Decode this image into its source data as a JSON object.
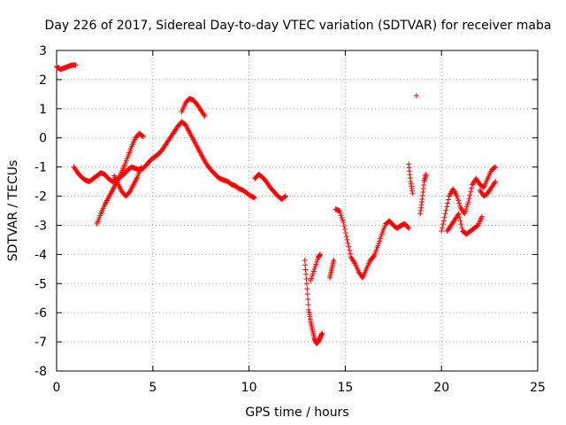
{
  "chart_data": {
    "type": "scatter",
    "title": "Day 226 of 2017, Sidereal Day-to-day VTEC variation (SDTVAR) for receiver maba",
    "xlabel": "GPS time / hours",
    "ylabel": "SDTVAR / TECUs",
    "xlim": [
      0,
      25
    ],
    "ylim": [
      -8,
      3
    ],
    "xticks": [
      0,
      5,
      10,
      15,
      20,
      25
    ],
    "yticks": [
      -8,
      -7,
      -6,
      -5,
      -4,
      -3,
      -2,
      -1,
      0,
      1,
      2,
      3
    ],
    "xtick_labels": [
      "0",
      "5",
      "10",
      "15",
      "20",
      "25"
    ],
    "ytick_labels": [
      "-8",
      "-7",
      "-6",
      "-5",
      "-4",
      "-3",
      "-2",
      "-1",
      "0",
      "1",
      "2",
      "3"
    ],
    "grid": true,
    "marker": "plus",
    "color": "#ff0000",
    "segments": [
      {
        "name": "s1",
        "x": [
          0.0,
          0.2,
          0.4,
          0.6,
          0.8,
          1.0
        ],
        "y": [
          2.45,
          2.35,
          2.4,
          2.45,
          2.5,
          2.5
        ]
      },
      {
        "name": "s2",
        "x": [
          0.9,
          1.1,
          1.3,
          1.5,
          1.7,
          1.9,
          2.1,
          2.3,
          2.5,
          2.7,
          2.9,
          3.1,
          3.3,
          3.5,
          3.7,
          3.9,
          4.1,
          4.3,
          4.5,
          4.7,
          4.9,
          5.1,
          5.3,
          5.5,
          5.7,
          5.9,
          6.1,
          6.3,
          6.5,
          6.7,
          6.9,
          7.1,
          7.3,
          7.5,
          7.7,
          7.9,
          8.1,
          8.3,
          8.5,
          8.7,
          8.9,
          9.1,
          9.3,
          9.5,
          9.7,
          9.9,
          10.1,
          10.3
        ],
        "y": [
          -1.0,
          -1.2,
          -1.35,
          -1.45,
          -1.5,
          -1.4,
          -1.3,
          -1.2,
          -1.25,
          -1.4,
          -1.5,
          -1.45,
          -1.35,
          -1.25,
          -1.1,
          -1.0,
          -1.05,
          -1.1,
          -1.05,
          -0.9,
          -0.75,
          -0.65,
          -0.55,
          -0.4,
          -0.2,
          0.0,
          0.2,
          0.4,
          0.55,
          0.45,
          0.2,
          -0.05,
          -0.3,
          -0.55,
          -0.8,
          -1.0,
          -1.15,
          -1.3,
          -1.4,
          -1.45,
          -1.5,
          -1.6,
          -1.65,
          -1.75,
          -1.8,
          -1.9,
          -2.0,
          -2.05
        ]
      },
      {
        "name": "s3",
        "x": [
          2.1,
          2.3,
          2.5,
          2.7,
          2.9,
          3.1,
          3.3,
          3.5,
          3.7,
          3.9,
          4.1,
          4.3,
          4.5
        ],
        "y": [
          -2.95,
          -2.6,
          -2.3,
          -2.05,
          -1.8,
          -1.55,
          -1.3,
          -1.0,
          -0.65,
          -0.3,
          0.0,
          0.15,
          0.05
        ]
      },
      {
        "name": "s4",
        "x": [
          3.0,
          3.2,
          3.4,
          3.6,
          3.8,
          4.0,
          4.2,
          4.4
        ],
        "y": [
          -1.3,
          -1.6,
          -1.85,
          -2.0,
          -1.85,
          -1.6,
          -1.35,
          -1.0
        ]
      },
      {
        "name": "s5",
        "x": [
          6.5,
          6.7,
          6.9,
          7.1,
          7.3,
          7.5,
          7.7
        ],
        "y": [
          0.9,
          1.2,
          1.35,
          1.3,
          1.15,
          0.95,
          0.75
        ]
      },
      {
        "name": "s6",
        "x": [
          10.3,
          10.5,
          10.7,
          10.9,
          11.1,
          11.3,
          11.5,
          11.7,
          11.9
        ],
        "y": [
          -1.4,
          -1.25,
          -1.35,
          -1.5,
          -1.7,
          -1.85,
          -2.0,
          -2.1,
          -2.0
        ]
      },
      {
        "name": "s7",
        "x": [
          12.9,
          13.0,
          13.1,
          13.2,
          13.3,
          13.4,
          13.5,
          13.6,
          13.7,
          13.8
        ],
        "y": [
          -4.2,
          -5.0,
          -5.9,
          -6.3,
          -6.6,
          -6.9,
          -7.05,
          -7.0,
          -6.85,
          -6.7
        ]
      },
      {
        "name": "s8",
        "x": [
          13.2,
          13.4,
          13.6,
          13.7
        ],
        "y": [
          -4.9,
          -4.5,
          -4.1,
          -4.0
        ]
      },
      {
        "name": "s9",
        "x": [
          14.2,
          14.3,
          14.4
        ],
        "y": [
          -4.8,
          -4.5,
          -4.2
        ]
      },
      {
        "name": "s10",
        "x": [
          14.5,
          14.7,
          14.9,
          15.1,
          15.3,
          15.5,
          15.7,
          15.9,
          16.1,
          16.3,
          16.5,
          16.7,
          16.9,
          17.1,
          17.3,
          17.5,
          17.7,
          17.9,
          18.1,
          18.3
        ],
        "y": [
          -2.45,
          -2.5,
          -2.9,
          -3.5,
          -4.1,
          -4.3,
          -4.6,
          -4.8,
          -4.5,
          -4.2,
          -4.05,
          -3.7,
          -3.3,
          -2.95,
          -2.85,
          -3.0,
          -3.1,
          -3.0,
          -2.95,
          -3.1
        ]
      },
      {
        "name": "s11",
        "x": [
          18.3,
          18.4,
          18.5
        ],
        "y": [
          -0.9,
          -1.5,
          -1.9
        ]
      },
      {
        "name": "s12",
        "x": [
          18.7
        ],
        "y": [
          1.45
        ]
      },
      {
        "name": "s13",
        "x": [
          18.9,
          19.0,
          19.1,
          19.2
        ],
        "y": [
          -2.6,
          -2.1,
          -1.5,
          -1.25
        ]
      },
      {
        "name": "s14",
        "x": [
          20.0,
          20.2,
          20.4,
          20.6,
          20.8,
          21.0,
          21.2,
          21.4,
          21.6,
          21.8,
          22.0,
          22.2,
          22.4,
          22.6,
          22.8
        ],
        "y": [
          -3.2,
          -2.6,
          -2.0,
          -1.75,
          -2.0,
          -2.4,
          -2.6,
          -2.2,
          -1.6,
          -1.4,
          -1.6,
          -1.7,
          -1.4,
          -1.1,
          -1.0
        ]
      },
      {
        "name": "s15",
        "x": [
          20.3,
          20.5,
          20.7,
          20.9,
          21.1,
          21.3,
          21.5,
          21.7,
          21.9,
          22.1
        ],
        "y": [
          -3.2,
          -3.0,
          -2.8,
          -2.6,
          -3.2,
          -3.3,
          -3.2,
          -3.1,
          -3.0,
          -2.7
        ]
      },
      {
        "name": "s16",
        "x": [
          22.0,
          22.2,
          22.4,
          22.6,
          22.8
        ],
        "y": [
          -1.8,
          -2.0,
          -1.9,
          -1.7,
          -1.5
        ]
      }
    ]
  }
}
